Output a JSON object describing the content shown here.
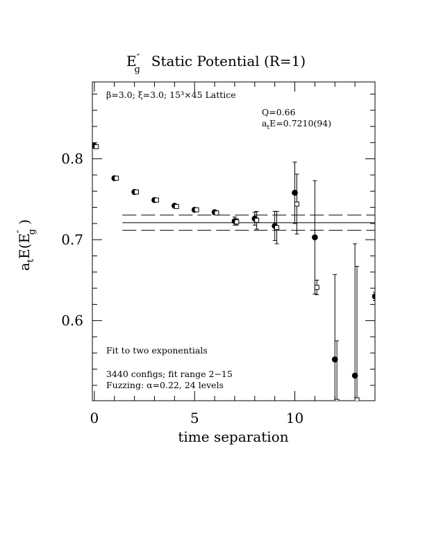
{
  "chart_data": {
    "type": "scatter",
    "title": {
      "E": "E",
      "prime": "″",
      "sub": "g",
      "rest": "Static Potential (R=1)"
    },
    "xlabel": "time separation",
    "ylabel": {
      "a": "a",
      "sub_t": "t",
      "E": "E(E",
      "prime": "″",
      "sub_g": "g",
      "close": ")"
    },
    "xlim": [
      -0.1,
      14.0
    ],
    "ylim": [
      0.501,
      0.895
    ],
    "x_ticks": [
      {
        "value": 0,
        "label": "0"
      },
      {
        "value": 5,
        "label": "5"
      },
      {
        "value": 10,
        "label": "10"
      }
    ],
    "y_ticks": [
      {
        "value": 0.6,
        "label": "0.6"
      },
      {
        "value": 0.7,
        "label": "0.7"
      },
      {
        "value": 0.8,
        "label": "0.8"
      }
    ],
    "annotations": {
      "lattice": "β=3.0; ξ=3.0; 15³×45 Lattice",
      "q": "Q=0.66",
      "ate_a": "a",
      "ate_t": "t",
      "ate_rest": "E=0.7210(94)",
      "fit": "Fit to two exponentials",
      "configs": "3440 configs; fit range 2−15",
      "fuzzing": "Fuzzing: α=0.22, 24 levels"
    },
    "fit": {
      "x_start": 1.4,
      "x_end": 14.0,
      "center": 0.721,
      "error": 0.0094
    },
    "series": [
      {
        "marker": "filled-circle",
        "points": [
          {
            "x": 0,
            "y": 0.816,
            "err": 0.001
          },
          {
            "x": 1,
            "y": 0.776,
            "err": 0.001
          },
          {
            "x": 2,
            "y": 0.759,
            "err": 0.001
          },
          {
            "x": 3,
            "y": 0.749,
            "err": 0.001
          },
          {
            "x": 4,
            "y": 0.742,
            "err": 0.001
          },
          {
            "x": 5,
            "y": 0.737,
            "err": 0.001
          },
          {
            "x": 6,
            "y": 0.734,
            "err": 0.002
          },
          {
            "x": 7,
            "y": 0.723,
            "err": 0.005
          },
          {
            "x": 8,
            "y": 0.726,
            "err": 0.008
          },
          {
            "x": 9,
            "y": 0.717,
            "err": 0.018
          },
          {
            "x": 10,
            "y": 0.758,
            "err": 0.038
          },
          {
            "x": 11,
            "y": 0.703,
            "err": 0.07
          },
          {
            "x": 12,
            "y": 0.552,
            "err": 0.105
          },
          {
            "x": 13,
            "y": 0.532,
            "err": 0.163
          },
          {
            "x": 14,
            "y": 0.63,
            "err": 0.005
          }
        ]
      },
      {
        "marker": "open-square",
        "points": [
          {
            "x": 0.1,
            "y": 0.815,
            "err": 0.001
          },
          {
            "x": 1.1,
            "y": 0.776,
            "err": 0.001
          },
          {
            "x": 2.1,
            "y": 0.759,
            "err": 0.001
          },
          {
            "x": 3.1,
            "y": 0.749,
            "err": 0.001
          },
          {
            "x": 4.1,
            "y": 0.741,
            "err": 0.001
          },
          {
            "x": 5.1,
            "y": 0.737,
            "err": 0.001
          },
          {
            "x": 6.1,
            "y": 0.733,
            "err": 0.002
          },
          {
            "x": 7.1,
            "y": 0.722,
            "err": 0.004
          },
          {
            "x": 8.1,
            "y": 0.724,
            "err": 0.011
          },
          {
            "x": 9.1,
            "y": 0.715,
            "err": 0.02
          },
          {
            "x": 10.1,
            "y": 0.744,
            "err": 0.037
          },
          {
            "x": 11.1,
            "y": 0.641,
            "err": 0.009
          },
          {
            "x": 12.1,
            "y": 0.5,
            "err": 0.075
          },
          {
            "x": 13.1,
            "y": 0.502,
            "err": 0.165
          }
        ]
      }
    ]
  }
}
